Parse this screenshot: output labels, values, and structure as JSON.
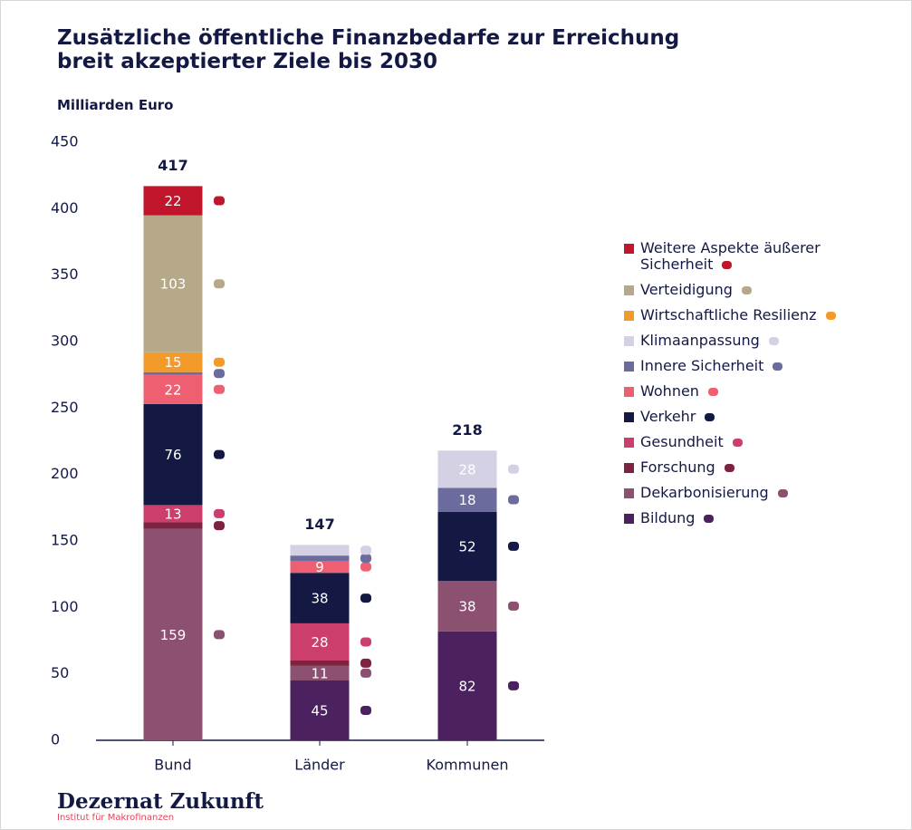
{
  "chart_data": {
    "type": "stacked_bar",
    "title": "Zusätzliche öffentliche Finanzbedarfe zur Erreichung breit akzeptierter Ziele bis 2030",
    "y_label": "Milliarden Euro",
    "categories": [
      "Bund",
      "Länder",
      "Kommunen"
    ],
    "series": [
      {
        "name": "Bildung",
        "color": "#4b2160",
        "values": [
          0,
          45,
          82
        ]
      },
      {
        "name": "Dekarbonisierung",
        "color": "#8c5170",
        "values": [
          159,
          11,
          38
        ]
      },
      {
        "name": "Forschung",
        "color": "#7c2340",
        "values": [
          5,
          4,
          0
        ]
      },
      {
        "name": "Gesundheit",
        "color": "#cc3f6d",
        "values": [
          13,
          28,
          0
        ]
      },
      {
        "name": "Verkehr",
        "color": "#141943",
        "values": [
          76,
          38,
          52
        ]
      },
      {
        "name": "Wohnen",
        "color": "#ef5f72",
        "values": [
          22,
          9,
          0
        ]
      },
      {
        "name": "Innere Sicherheit",
        "color": "#6b6b9e",
        "values": [
          2,
          4,
          18
        ]
      },
      {
        "name": "Klimaanpassung",
        "color": "#d3d1e3",
        "values": [
          0,
          8,
          28
        ]
      },
      {
        "name": "Wirtschaftliche Resilienz",
        "color": "#f39a2b",
        "values": [
          15,
          0,
          0
        ]
      },
      {
        "name": "Verteidigung",
        "color": "#b5a98a",
        "values": [
          103,
          0,
          0
        ]
      },
      {
        "name": "Weitere Aspekte äußerer Sicherheit",
        "color": "#c0152a",
        "values": [
          22,
          0,
          0
        ]
      }
    ],
    "totals": [
      417,
      147,
      218
    ],
    "ylim": [
      0,
      450
    ],
    "yticks": [
      0,
      50,
      100,
      150,
      200,
      250,
      300,
      350,
      400,
      450
    ],
    "legend": "right"
  },
  "footer": {
    "logo": "Dezernat Zukunft",
    "subtitle": "Institut für Makrofinanzen"
  }
}
